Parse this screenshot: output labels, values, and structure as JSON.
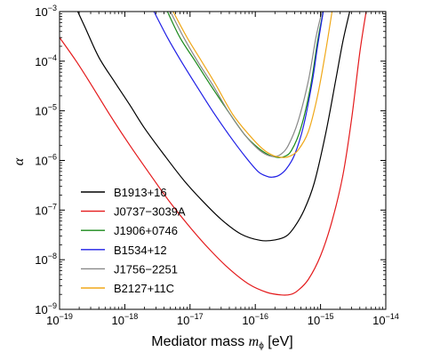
{
  "chart_data": {
    "type": "line",
    "xlabel_prefix": "Mediator mass ",
    "xlabel_symbol": "m",
    "xlabel_sub": "ϕ",
    "xlabel_suffix": " [eV]",
    "ylabel": "α",
    "xscale": "log",
    "yscale": "log",
    "xlim": [
      1e-19,
      1e-14
    ],
    "ylim": [
      1e-09,
      0.001
    ],
    "x_ticks": [
      {
        "base": "10",
        "exp": "−19",
        "value": 1e-19
      },
      {
        "base": "10",
        "exp": "−18",
        "value": 1e-18
      },
      {
        "base": "10",
        "exp": "−17",
        "value": 1e-17
      },
      {
        "base": "10",
        "exp": "−16",
        "value": 1e-16
      },
      {
        "base": "10",
        "exp": "−15",
        "value": 1e-15
      },
      {
        "base": "10",
        "exp": "−14",
        "value": 1e-14
      }
    ],
    "y_ticks": [
      {
        "base": "10",
        "exp": "−9",
        "value": 1e-09
      },
      {
        "base": "10",
        "exp": "−8",
        "value": 1e-08
      },
      {
        "base": "10",
        "exp": "−7",
        "value": 1e-07
      },
      {
        "base": "10",
        "exp": "−6",
        "value": 1e-06
      },
      {
        "base": "10",
        "exp": "−5",
        "value": 1e-05
      },
      {
        "base": "10",
        "exp": "−4",
        "value": 0.0001
      },
      {
        "base": "10",
        "exp": "−3",
        "value": 0.001
      }
    ],
    "legend_position": "bottom-left",
    "series": [
      {
        "name": "B1913+16",
        "color": "#000000",
        "x": [
          1.9e-19,
          2.5e-19,
          4e-19,
          7e-19,
          1.2e-18,
          2e-18,
          4e-18,
          8e-18,
          1.5e-17,
          3e-17,
          6e-17,
          1.2e-16,
          2e-16,
          3e-16,
          4e-16,
          5.6e-16,
          8e-16,
          1.2e-15,
          1.7e-15,
          2.2e-15,
          2.8e-15
        ],
        "y": [
          0.001,
          0.00046,
          0.00012,
          3.8e-05,
          1.3e-05,
          4.5e-06,
          1.3e-06,
          4e-07,
          1.6e-07,
          6.5e-08,
          3.3e-08,
          2.45e-08,
          2.5e-08,
          3e-08,
          4.6e-08,
          1e-07,
          3.5e-07,
          3.5e-06,
          4e-05,
          0.00025,
          0.001
        ]
      },
      {
        "name": "J0737−3039A",
        "color": "#e41a1c",
        "x": [
          1e-19,
          1.8e-19,
          3e-19,
          6e-19,
          1.2e-18,
          2.5e-18,
          5e-18,
          1e-17,
          2e-17,
          4e-17,
          8e-17,
          1.5e-16,
          2.5e-16,
          3.5e-16,
          4.5e-16,
          6.5e-16,
          1e-15,
          1.5e-15,
          2.2e-15,
          3e-15,
          4e-15,
          5e-15
        ],
        "y": [
          0.0003,
          0.0001,
          3.5e-05,
          8e-06,
          2e-06,
          5e-07,
          1.4e-07,
          4.5e-08,
          1.6e-08,
          6.5e-09,
          3.2e-09,
          2.2e-09,
          1.95e-09,
          2e-09,
          2.4e-09,
          4e-09,
          1.2e-08,
          6e-08,
          5e-07,
          7e-06,
          0.00015,
          0.001
        ]
      },
      {
        "name": "J1906+0746",
        "color": "#1a8a1a",
        "x": [
          4.5e-18,
          7e-18,
          1.2e-17,
          2e-17,
          4e-17,
          7e-17,
          1.1e-16,
          1.6e-16,
          2.2e-16,
          2.8e-16,
          3.6e-16,
          5e-16,
          7e-16,
          9e-16,
          1.1e-15
        ],
        "y": [
          0.001,
          0.0003,
          0.0001,
          3.5e-05,
          9e-06,
          3.2e-06,
          1.8e-06,
          1.3e-06,
          1.15e-06,
          1.2e-06,
          1.6e-06,
          4.5e-06,
          3e-05,
          0.00025,
          0.001
        ]
      },
      {
        "name": "B1534+12",
        "color": "#1f1fe6",
        "x": [
          2.8e-18,
          4.5e-18,
          7e-18,
          1.2e-17,
          2.2e-17,
          4e-17,
          7e-17,
          1.1e-16,
          1.5e-16,
          1.8e-16,
          2.3e-16,
          3e-16,
          4e-16,
          5.5e-16,
          7.5e-16,
          9e-16,
          1.1e-15
        ],
        "y": [
          0.001,
          0.0003,
          0.00011,
          3.5e-05,
          1e-05,
          3.2e-06,
          1.2e-06,
          6e-07,
          4.8e-07,
          4.6e-07,
          5e-07,
          6.8e-07,
          1.3e-06,
          5e-06,
          4e-05,
          0.0002,
          0.001
        ]
      },
      {
        "name": "J1756−2251",
        "color": "#888888",
        "x": [
          5e-18,
          8e-18,
          1.3e-17,
          2.2e-17,
          4e-17,
          7e-17,
          1.1e-16,
          1.5e-16,
          2e-16,
          2.5e-16,
          3.2e-16,
          4.5e-16,
          6.5e-16,
          8.5e-16,
          1.05e-15
        ],
        "y": [
          0.001,
          0.0003,
          0.0001,
          3.4e-05,
          9e-06,
          3.2e-06,
          1.7e-06,
          1.3e-06,
          1.2e-06,
          1.35e-06,
          2e-06,
          6e-06,
          4e-05,
          0.0003,
          0.001
        ]
      },
      {
        "name": "B2127+11C",
        "color": "#f0a818",
        "x": [
          5.5e-18,
          9e-18,
          1.5e-17,
          2.5e-17,
          4.5e-17,
          8e-17,
          1.3e-16,
          1.9e-16,
          2.6e-16,
          3.3e-16,
          4.5e-16,
          6.5e-16,
          9e-16,
          1.2e-15,
          1.5e-15
        ],
        "y": [
          0.001,
          0.0003,
          0.0001,
          3.3e-05,
          8.5e-06,
          3.3e-06,
          1.7e-06,
          1.25e-06,
          1.15e-06,
          1.2e-06,
          1.6e-06,
          3.8e-06,
          2e-05,
          0.00016,
          0.001
        ]
      }
    ]
  }
}
